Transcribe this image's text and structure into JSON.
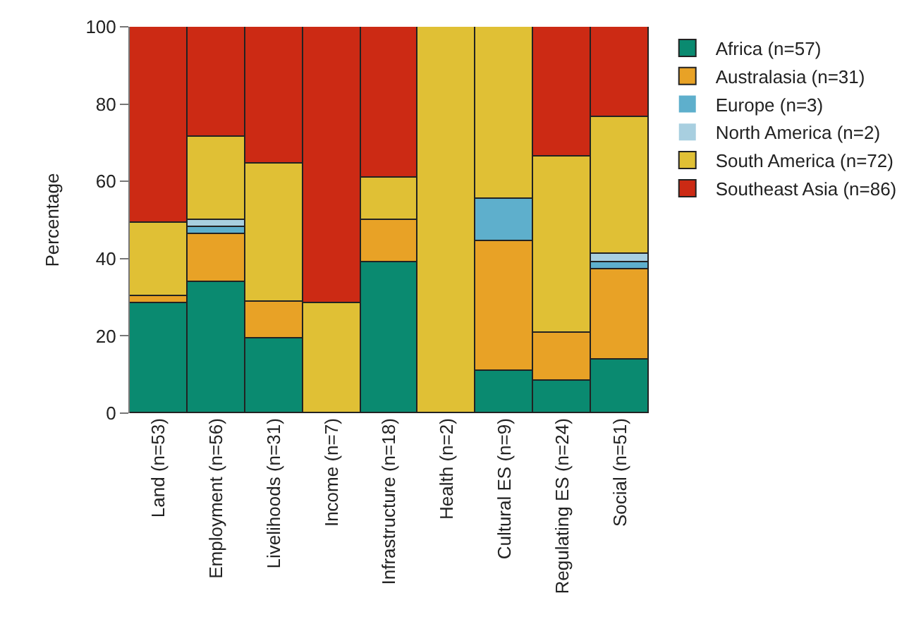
{
  "chart_data": {
    "type": "bar",
    "stacked": true,
    "ylabel": "Percentage",
    "categories": [
      "Land (n=53)",
      "Employment (n=56)",
      "Livelihoods (n=31)",
      "Income (n=7)",
      "Infrastructure (n=18)",
      "Health (n=2)",
      "Cultural ES (n=9)",
      "Regulating ES (n=24)",
      "Social (n=51)"
    ],
    "series": [
      {
        "name": "Africa (n=57)",
        "color": "#0a8a70",
        "values": [
          28.3,
          33.9,
          19.4,
          0,
          38.9,
          0,
          11.1,
          8.3,
          13.7
        ]
      },
      {
        "name": "Australasia (n=31)",
        "color": "#e8a226",
        "values": [
          1.9,
          12.5,
          9.6,
          0,
          11.1,
          0,
          33.3,
          12.5,
          23.5
        ]
      },
      {
        "name": "Europe (n=3)",
        "color": "#5eafcc",
        "values": [
          0,
          1.8,
          0,
          0,
          0,
          0,
          11.1,
          0,
          2.0
        ]
      },
      {
        "name": "North America (n=2)",
        "color": "#a8cfe0",
        "values": [
          0,
          1.8,
          0,
          0,
          0,
          0,
          0,
          0,
          2.0
        ]
      },
      {
        "name": "South America (n=72)",
        "color": "#e0c035",
        "values": [
          18.9,
          21.4,
          35.5,
          28.6,
          11.1,
          100,
          44.4,
          45.8,
          35.3
        ]
      },
      {
        "name": "Southeast Asia (n=86)",
        "color": "#cc2a14",
        "values": [
          50.9,
          28.6,
          35.5,
          71.4,
          38.9,
          0,
          0,
          33.3,
          23.5
        ]
      }
    ],
    "ylim": [
      0,
      100
    ],
    "yticks": [
      0,
      20,
      40,
      60,
      80,
      100
    ],
    "legend": "top right"
  }
}
